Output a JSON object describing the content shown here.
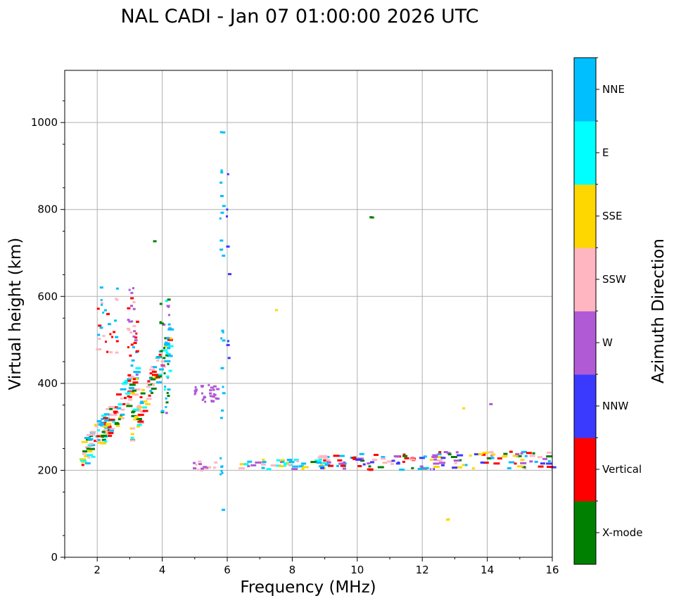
{
  "chart_data": {
    "type": "scatter",
    "title": "NAL CADI - Jan 07 01:00:00 2026 UTC",
    "xlabel": "Frequency (MHz)",
    "ylabel": "Virtual height (km)",
    "xlim": [
      1,
      16
    ],
    "ylim": [
      0,
      1120
    ],
    "xticks": [
      2,
      4,
      6,
      8,
      10,
      12,
      14,
      16
    ],
    "yticks": [
      0,
      200,
      400,
      600,
      800,
      1000
    ],
    "grid": true,
    "colorbar": {
      "label": "Azimuth Direction",
      "categories": [
        {
          "name": "X-mode",
          "color": "#008000"
        },
        {
          "name": "Vertical",
          "color": "#ff0000"
        },
        {
          "name": "NNW",
          "color": "#3a3aff"
        },
        {
          "name": "W",
          "color": "#b05ad6"
        },
        {
          "name": "SSW",
          "color": "#ffb6c1"
        },
        {
          "name": "SSE",
          "color": "#ffd700"
        },
        {
          "name": "E",
          "color": "#00ffff"
        },
        {
          "name": "NNE",
          "color": "#00bfff"
        }
      ]
    },
    "echo_clusters": [
      {
        "name": "low-frequency F-trace",
        "f": [
          1.4,
          2.6
        ],
        "h": [
          230,
          340
        ],
        "n": 70,
        "mix": [
          "Vertical",
          "NNE",
          "SSE",
          "E",
          "SSW",
          "X-mode"
        ]
      },
      {
        "name": "rising trace",
        "f": [
          2.0,
          3.2
        ],
        "h": [
          280,
          420
        ],
        "n": 70,
        "mix": [
          "Vertical",
          "SSE",
          "NNE",
          "SSW",
          "E",
          "X-mode"
        ]
      },
      {
        "name": "x-mode band",
        "f": [
          3.0,
          4.2
        ],
        "h": [
          300,
          500
        ],
        "n": 90,
        "mix": [
          "X-mode",
          "E",
          "SSE",
          "NNE",
          "Vertical",
          "SSW"
        ]
      },
      {
        "name": "spread column 3 MHz",
        "f": [
          2.9,
          3.2
        ],
        "h": [
          400,
          630
        ],
        "n": 35,
        "mix": [
          "Vertical",
          "NNE",
          "W",
          "SSW"
        ]
      },
      {
        "name": "upper spread",
        "f": [
          1.9,
          2.6
        ],
        "h": [
          460,
          630
        ],
        "n": 30,
        "mix": [
          "Vertical",
          "SSW",
          "NNE"
        ]
      },
      {
        "name": "4 MHz column",
        "f": [
          3.9,
          4.2
        ],
        "h": [
          330,
          600
        ],
        "n": 35,
        "mix": [
          "X-mode",
          "E",
          "W",
          "NNE"
        ]
      },
      {
        "name": "W cluster",
        "f": [
          4.9,
          5.7
        ],
        "h": [
          360,
          400
        ],
        "n": 30,
        "mix": [
          "W"
        ]
      },
      {
        "name": "W low cluster",
        "f": [
          4.8,
          5.6
        ],
        "h": [
          200,
          225
        ],
        "n": 18,
        "mix": [
          "W",
          "SSW"
        ]
      },
      {
        "name": "NNE column near 5.8 MHz",
        "f": [
          5.75,
          5.85
        ],
        "h": [
          100,
          1010
        ],
        "n": 28,
        "mix": [
          "NNE"
        ]
      },
      {
        "name": "NNW column near 6 MHz",
        "f": [
          5.95,
          6.05
        ],
        "h": [
          440,
          900
        ],
        "n": 8,
        "mix": [
          "NNW"
        ]
      },
      {
        "name": "mid band",
        "f": [
          6.3,
          9.0
        ],
        "h": [
          205,
          228
        ],
        "n": 45,
        "mix": [
          "E",
          "SSE",
          "SSW",
          "W",
          "NNE"
        ]
      },
      {
        "name": "F-layer band",
        "f": [
          8.5,
          12.0
        ],
        "h": [
          203,
          240
        ],
        "n": 65,
        "mix": [
          "Vertical",
          "X-mode",
          "SSW",
          "W",
          "NNW",
          "NNE"
        ]
      },
      {
        "name": "high F-layer band",
        "f": [
          12.0,
          16.0
        ],
        "h": [
          205,
          245
        ],
        "n": 80,
        "mix": [
          "Vertical",
          "NNW",
          "X-mode",
          "W",
          "SSW",
          "NNE",
          "SSE"
        ]
      },
      {
        "name": "isolated X-mode near 10.4 MHz",
        "f": [
          10.35,
          10.45
        ],
        "h": [
          760,
          790
        ],
        "n": 2,
        "mix": [
          "X-mode"
        ]
      },
      {
        "name": "isolated SSE near 12.5 MHz",
        "f": [
          12.2,
          12.8
        ],
        "h": [
          88,
          92
        ],
        "n": 3,
        "mix": [
          "SSE"
        ]
      },
      {
        "name": "isolated SSE near 13.2 MHz",
        "f": [
          13.1,
          13.3
        ],
        "h": [
          344,
          346
        ],
        "n": 1,
        "mix": [
          "SSE"
        ]
      },
      {
        "name": "isolated W near 14 MHz",
        "f": [
          13.9,
          14.1
        ],
        "h": [
          353,
          355
        ],
        "n": 1,
        "mix": [
          "W"
        ]
      },
      {
        "name": "isolated SSE near 7.5 MHz",
        "f": [
          7.4,
          7.5
        ],
        "h": [
          568,
          572
        ],
        "n": 1,
        "mix": [
          "SSE"
        ]
      },
      {
        "name": "isolated X-mode near 3.7 MHz",
        "f": [
          3.6,
          3.75
        ],
        "h": [
          728,
          732
        ],
        "n": 1,
        "mix": [
          "X-mode"
        ]
      }
    ]
  }
}
